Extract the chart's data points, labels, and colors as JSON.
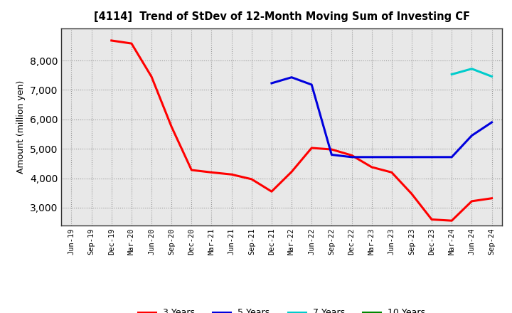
{
  "title": "[4114]  Trend of StDev of 12-Month Moving Sum of Investing CF",
  "ylabel": "Amount (million yen)",
  "background_color": "#ffffff",
  "plot_background": "#e8e8e8",
  "grid_color": "#999999",
  "ylim": [
    2400,
    9100
  ],
  "yticks": [
    3000,
    4000,
    5000,
    6000,
    7000,
    8000
  ],
  "series": {
    "3 Years": {
      "color": "#ff0000",
      "x": [
        0,
        1,
        2,
        3,
        4,
        5,
        6,
        7,
        8,
        9,
        10,
        11,
        12,
        13,
        14,
        15,
        16,
        17,
        18,
        19,
        20,
        21
      ],
      "y": [
        null,
        null,
        8680,
        8580,
        7450,
        5750,
        4280,
        4200,
        4130,
        3970,
        3550,
        4220,
        5030,
        4980,
        4780,
        4380,
        4200,
        3470,
        2600,
        2560,
        3220,
        3320
      ]
    },
    "5 Years": {
      "color": "#0000dd",
      "x": [
        0,
        1,
        2,
        3,
        4,
        5,
        6,
        7,
        8,
        9,
        10,
        11,
        12,
        13,
        14,
        15,
        16,
        17,
        18,
        19,
        20,
        21
      ],
      "y": [
        null,
        null,
        null,
        null,
        null,
        null,
        null,
        null,
        null,
        null,
        7230,
        7430,
        7180,
        4800,
        4720,
        4720,
        4720,
        4720,
        4720,
        4720,
        5450,
        5900
      ]
    },
    "7 Years": {
      "color": "#00cccc",
      "x": [
        0,
        1,
        2,
        3,
        4,
        5,
        6,
        7,
        8,
        9,
        10,
        11,
        12,
        13,
        14,
        15,
        16,
        17,
        18,
        19,
        20,
        21
      ],
      "y": [
        null,
        null,
        null,
        null,
        null,
        null,
        null,
        null,
        null,
        null,
        null,
        null,
        null,
        null,
        null,
        null,
        null,
        null,
        null,
        7530,
        7720,
        7460
      ]
    },
    "10 Years": {
      "color": "#008800",
      "x": [],
      "y": []
    }
  },
  "xtick_labels": [
    "Jun-19",
    "Sep-19",
    "Dec-19",
    "Mar-20",
    "Jun-20",
    "Sep-20",
    "Dec-20",
    "Mar-21",
    "Jun-21",
    "Sep-21",
    "Dec-21",
    "Mar-22",
    "Jun-22",
    "Sep-22",
    "Dec-22",
    "Mar-23",
    "Jun-23",
    "Sep-23",
    "Dec-23",
    "Mar-24",
    "Jun-24",
    "Sep-24"
  ],
  "linewidth": 2.2
}
